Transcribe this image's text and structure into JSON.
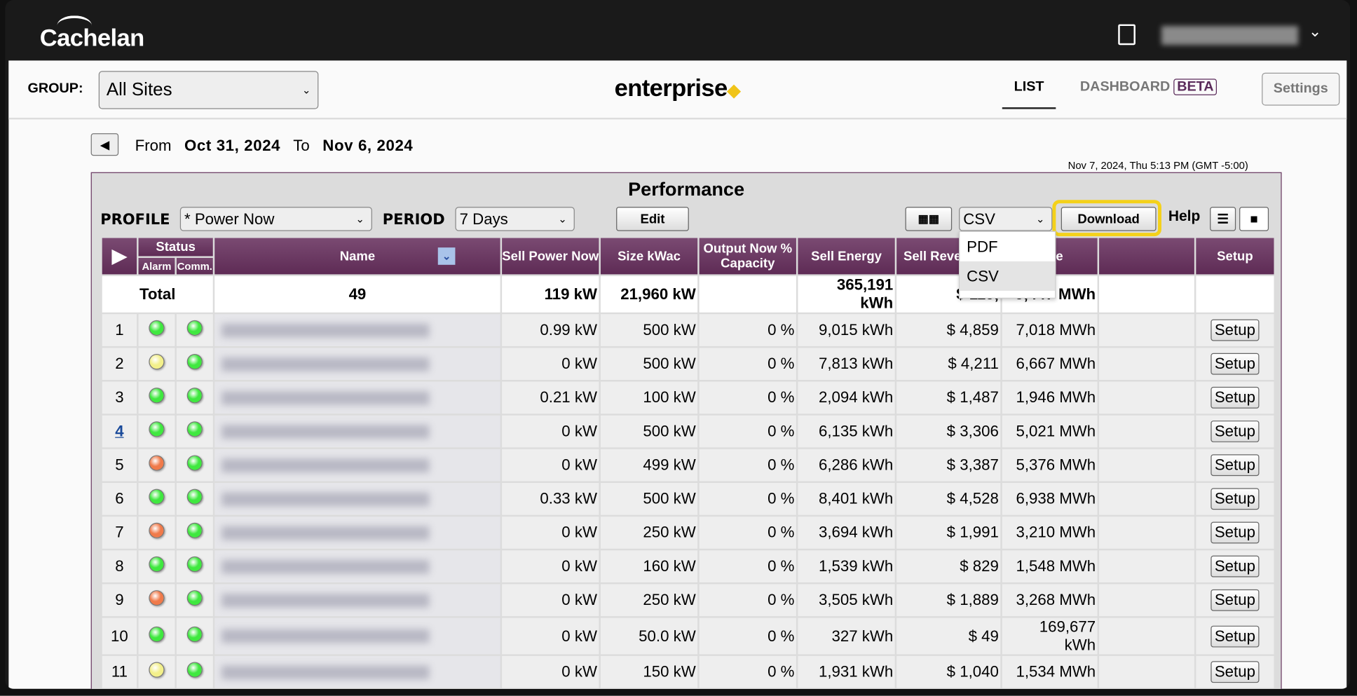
{
  "header": {
    "logo": "Cachelan",
    "user_menu_icon": "chevron-down-icon"
  },
  "nav": {
    "group_label": "GROUP:",
    "group_value": "All Sites",
    "brand": "enterprise",
    "brand_mark": "◆",
    "tab_list": "LIST",
    "tab_dashboard": "DASHBOARD",
    "beta": "BETA",
    "settings": "Settings"
  },
  "range": {
    "from_label": "From",
    "from": "Oct 31, 2024",
    "to_label": "To",
    "to": "Nov 6, 2024",
    "now": "Nov 7, 2024, Thu 5:13 PM (GMT -5:00)"
  },
  "panel": {
    "title": "Performance",
    "profile_label": "PROFILE",
    "profile_value": "* Power Now",
    "period_label": "PERIOD",
    "period_value": "7 Days",
    "edit": "Edit",
    "format_value": "CSV",
    "download": "Download",
    "help": "Help",
    "format_options": [
      "PDF",
      "CSV"
    ]
  },
  "table": {
    "headers": {
      "status": "Status",
      "alarm": "Alarm",
      "comm": "Comm.",
      "name": "Name",
      "sell_power": "Sell Power Now",
      "size": "Size kWac",
      "output": "Output Now % Capacity",
      "sell_energy": "Sell Energy",
      "sell_revenue": "Sell Reve",
      "lifetime": "time",
      "setup": "Setup"
    },
    "total": {
      "label": "Total",
      "count": "49",
      "sell_power": "119 kW",
      "size": "21,960 kW",
      "sell_energy": "365,191 kWh",
      "sell_revenue": "$ 119,",
      "lifetime": "9,447 MWh"
    },
    "status_colors": {
      "green": "#3fe83f",
      "yellow": "#f3f08a",
      "orange": "#f07a4a"
    },
    "rows": [
      {
        "n": "1",
        "alarm": "green",
        "comm": "green",
        "sell_power": "0.99 kW",
        "size": "500 kW",
        "output": "0 %",
        "sell_energy": "9,015 kWh",
        "sell_revenue": "$ 4,859",
        "lifetime": "7,018 MWh",
        "setup": "Setup"
      },
      {
        "n": "2",
        "alarm": "yellow",
        "comm": "green",
        "sell_power": "0 kW",
        "size": "500 kW",
        "output": "0 %",
        "sell_energy": "7,813 kWh",
        "sell_revenue": "$ 4,211",
        "lifetime": "6,667 MWh",
        "setup": "Setup"
      },
      {
        "n": "3",
        "alarm": "green",
        "comm": "green",
        "sell_power": "0.21 kW",
        "size": "100 kW",
        "output": "0 %",
        "sell_energy": "2,094 kWh",
        "sell_revenue": "$ 1,487",
        "lifetime": "1,946 MWh",
        "setup": "Setup"
      },
      {
        "n": "4",
        "alarm": "green",
        "comm": "green",
        "sell_power": "0 kW",
        "size": "500 kW",
        "output": "0 %",
        "sell_energy": "6,135 kWh",
        "sell_revenue": "$ 3,306",
        "lifetime": "5,021 MWh",
        "setup": "Setup",
        "link": true
      },
      {
        "n": "5",
        "alarm": "orange",
        "comm": "green",
        "sell_power": "0 kW",
        "size": "499 kW",
        "output": "0 %",
        "sell_energy": "6,286 kWh",
        "sell_revenue": "$ 3,387",
        "lifetime": "5,376 MWh",
        "setup": "Setup"
      },
      {
        "n": "6",
        "alarm": "green",
        "comm": "green",
        "sell_power": "0.33 kW",
        "size": "500 kW",
        "output": "0 %",
        "sell_energy": "8,401 kWh",
        "sell_revenue": "$ 4,528",
        "lifetime": "6,938 MWh",
        "setup": "Setup"
      },
      {
        "n": "7",
        "alarm": "orange",
        "comm": "green",
        "sell_power": "0 kW",
        "size": "250 kW",
        "output": "0 %",
        "sell_energy": "3,694 kWh",
        "sell_revenue": "$ 1,991",
        "lifetime": "3,210 MWh",
        "setup": "Setup"
      },
      {
        "n": "8",
        "alarm": "green",
        "comm": "green",
        "sell_power": "0 kW",
        "size": "160 kW",
        "output": "0 %",
        "sell_energy": "1,539 kWh",
        "sell_revenue": "$ 829",
        "lifetime": "1,548 MWh",
        "setup": "Setup"
      },
      {
        "n": "9",
        "alarm": "orange",
        "comm": "green",
        "sell_power": "0 kW",
        "size": "250 kW",
        "output": "0 %",
        "sell_energy": "3,505 kWh",
        "sell_revenue": "$ 1,889",
        "lifetime": "3,268 MWh",
        "setup": "Setup"
      },
      {
        "n": "10",
        "alarm": "green",
        "comm": "green",
        "sell_power": "0 kW",
        "size": "50.0 kW",
        "output": "0 %",
        "sell_energy": "327 kWh",
        "sell_revenue": "$ 49",
        "lifetime": "169,677 kWh",
        "setup": "Setup"
      },
      {
        "n": "11",
        "alarm": "yellow",
        "comm": "green",
        "sell_power": "0 kW",
        "size": "150 kW",
        "output": "0 %",
        "sell_energy": "1,931 kWh",
        "sell_revenue": "$ 1,040",
        "lifetime": "1,534 MWh",
        "setup": "Setup"
      }
    ]
  }
}
